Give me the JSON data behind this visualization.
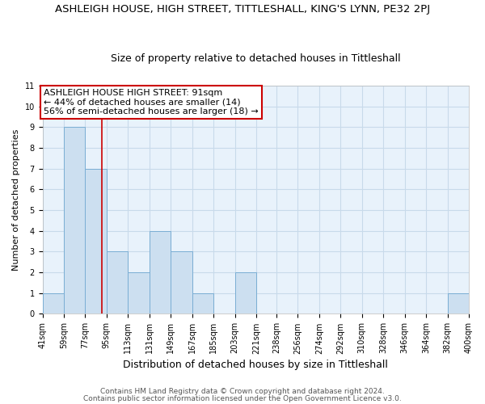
{
  "title": "ASHLEIGH HOUSE, HIGH STREET, TITTLESHALL, KING'S LYNN, PE32 2PJ",
  "subtitle": "Size of property relative to detached houses in Tittleshall",
  "xlabel": "Distribution of detached houses by size in Tittleshall",
  "ylabel": "Number of detached properties",
  "bin_edges": [
    41,
    59,
    77,
    95,
    113,
    131,
    149,
    167,
    185,
    203,
    221,
    238,
    256,
    274,
    292,
    310,
    328,
    346,
    364,
    382,
    400
  ],
  "bar_heights": [
    1,
    9,
    7,
    3,
    2,
    4,
    3,
    1,
    0,
    2,
    0,
    0,
    0,
    0,
    0,
    0,
    0,
    0,
    0,
    1
  ],
  "bar_color": "#ccdff0",
  "bar_edge_color": "#7aaed4",
  "grid_color": "#c8daea",
  "bg_color": "#e8f2fb",
  "property_size": 91,
  "vline_color": "#cc0000",
  "annotation_box_color": "#cc0000",
  "annotation_line1": "ASHLEIGH HOUSE HIGH STREET: 91sqm",
  "annotation_line2": "← 44% of detached houses are smaller (14)",
  "annotation_line3": "56% of semi-detached houses are larger (18) →",
  "ylim": [
    0,
    11
  ],
  "yticks": [
    0,
    1,
    2,
    3,
    4,
    5,
    6,
    7,
    8,
    9,
    10,
    11
  ],
  "footer1": "Contains HM Land Registry data © Crown copyright and database right 2024.",
  "footer2": "Contains public sector information licensed under the Open Government Licence v3.0.",
  "title_fontsize": 9.5,
  "subtitle_fontsize": 9,
  "xlabel_fontsize": 9,
  "ylabel_fontsize": 8,
  "tick_fontsize": 7,
  "annotation_fontsize": 8,
  "footer_fontsize": 6.5
}
